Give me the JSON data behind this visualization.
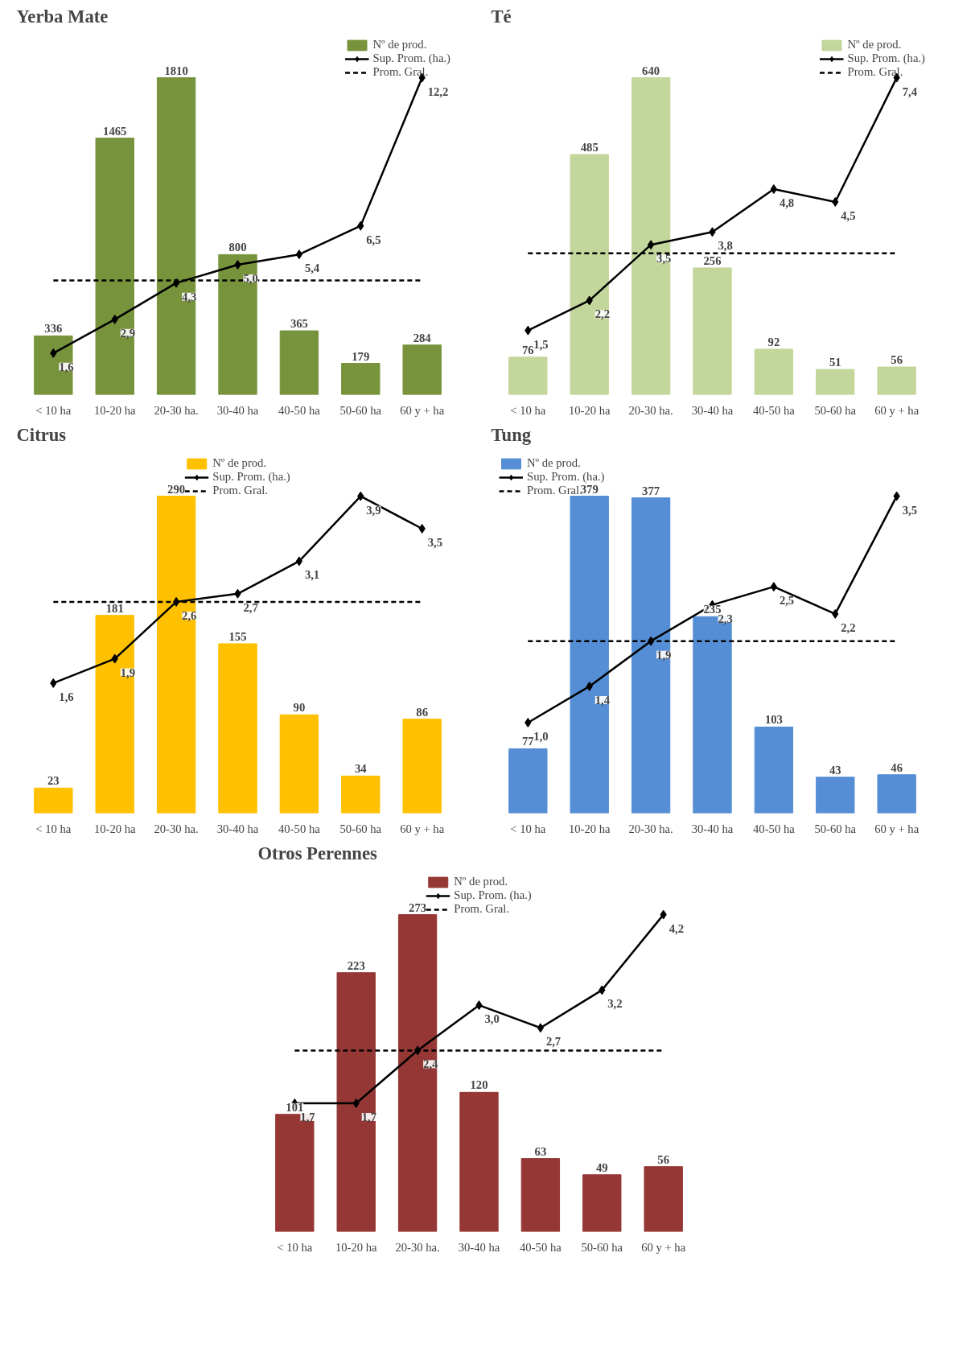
{
  "chart_data": [
    {
      "type": "bar",
      "title": "Yerba Mate",
      "categories": [
        "< 10 ha",
        "10-20 ha",
        "20-30 ha.",
        "30-40 ha",
        "40-50 ha",
        "50-60 ha",
        "60 y + ha"
      ],
      "tick_labels": "x",
      "legend": "top right",
      "marker": "diamond",
      "grid": false,
      "series": [
        {
          "name": "Nº de prod.",
          "color": "#77933c",
          "values": [
            336,
            1465,
            1810,
            800,
            365,
            179,
            284
          ],
          "value_labels": [
            "336",
            "1465",
            "1810",
            "800",
            "365",
            "179",
            "284"
          ]
        },
        {
          "name": "Sup. Prom. (ha.)",
          "type": "line",
          "axis": "y2",
          "color": "#000000",
          "values": [
            1.6,
            2.9,
            4.3,
            5.0,
            5.4,
            6.5,
            12.2
          ],
          "value_labels": [
            "1,6",
            "2,9",
            "4,3",
            "5,0",
            "5,4",
            "6,5",
            "12,2"
          ]
        }
      ],
      "ref_lines": [
        {
          "axis": "y2",
          "value": 4.4,
          "label": "Prom. Gral.",
          "color": "#000000",
          "line_style": "dashed"
        }
      ]
    },
    {
      "type": "bar",
      "title": "Té",
      "categories": [
        "< 10 ha",
        "10-20 ha",
        "20-30 ha.",
        "30-40 ha",
        "40-50 ha",
        "50-60 ha",
        "60 y + ha"
      ],
      "tick_labels": "x",
      "legend": "top right",
      "marker": "diamond",
      "grid": false,
      "series": [
        {
          "name": "Nº de prod.",
          "color": "#c3d69b",
          "values": [
            76,
            485,
            640,
            256,
            92,
            51,
            56
          ],
          "value_labels": [
            "76",
            "485",
            "640",
            "256",
            "92",
            "51",
            "56"
          ]
        },
        {
          "name": "Sup. Prom. (ha.)",
          "type": "line",
          "axis": "y2",
          "color": "#000000",
          "values": [
            1.5,
            2.2,
            3.5,
            3.8,
            4.8,
            4.5,
            7.4
          ],
          "value_labels": [
            "1,5",
            "2,2",
            "3,5",
            "3,8",
            "4,8",
            "4,5",
            "7,4"
          ]
        }
      ],
      "ref_lines": [
        {
          "axis": "y2",
          "value": 3.3,
          "label": "Prom. Gral.",
          "color": "#000000",
          "line_style": "dashed"
        }
      ]
    },
    {
      "type": "bar",
      "title": "Citrus",
      "categories": [
        "< 10 ha",
        "10-20 ha",
        "20-30 ha.",
        "30-40 ha",
        "40-50 ha",
        "50-60 ha",
        "60 y + ha"
      ],
      "tick_labels": "x",
      "legend": "top",
      "marker": "diamond",
      "grid": false,
      "series": [
        {
          "name": "Nº de prod.",
          "color": "#ffc000",
          "values": [
            23,
            181,
            290,
            155,
            90,
            34,
            86
          ],
          "value_labels": [
            "23",
            "181",
            "290",
            "155",
            "90",
            "34",
            "86"
          ]
        },
        {
          "name": "Sup. Prom. (ha.)",
          "type": "line",
          "axis": "y2",
          "color": "#000000",
          "values": [
            1.6,
            1.9,
            2.6,
            2.7,
            3.1,
            3.9,
            3.5
          ],
          "value_labels": [
            "1,6",
            "1,9",
            "2,6",
            "2,7",
            "3,1",
            "3,9",
            "3,5"
          ]
        }
      ],
      "ref_lines": [
        {
          "axis": "y2",
          "value": 2.6,
          "label": "Prom. Gral.",
          "color": "#000000",
          "line_style": "dashed"
        }
      ]
    },
    {
      "type": "bar",
      "title": "Tung",
      "categories": [
        "< 10 ha",
        "10-20 ha",
        "20-30 ha.",
        "30-40 ha",
        "40-50 ha",
        "50-60 ha",
        "60 y + ha"
      ],
      "tick_labels": "x",
      "legend": "top left",
      "marker": "diamond",
      "grid": false,
      "series": [
        {
          "name": "Nº de prod.",
          "color": "#558ed5",
          "values": [
            77,
            379,
            377,
            235,
            103,
            43,
            46
          ],
          "value_labels": [
            "77",
            "379",
            "377",
            "235",
            "103",
            "43",
            "46"
          ]
        },
        {
          "name": "Sup. Prom. (ha.)",
          "type": "line",
          "axis": "y2",
          "color": "#000000",
          "values": [
            1.0,
            1.4,
            1.9,
            2.3,
            2.5,
            2.2,
            3.5
          ],
          "value_labels": [
            "1,0",
            "1,4",
            "1,9",
            "2,3",
            "2,5",
            "2,2",
            "3,5"
          ]
        }
      ],
      "ref_lines": [
        {
          "axis": "y2",
          "value": 1.9,
          "label": "Prom. Gral.",
          "color": "#000000",
          "line_style": "dashed"
        }
      ]
    },
    {
      "type": "bar",
      "title": "Otros Perennes",
      "categories": [
        "< 10 ha",
        "10-20 ha",
        "20-30 ha.",
        "30-40 ha",
        "40-50 ha",
        "50-60 ha",
        "60 y + ha"
      ],
      "tick_labels": "x",
      "legend": "top",
      "marker": "diamond",
      "grid": false,
      "series": [
        {
          "name": "Nº de prod.",
          "color": "#953735",
          "values": [
            101,
            223,
            273,
            120,
            63,
            49,
            56
          ],
          "value_labels": [
            "101",
            "223",
            "273",
            "120",
            "63",
            "49",
            "56"
          ]
        },
        {
          "name": "Sup. Prom. (ha.)",
          "type": "line",
          "axis": "y2",
          "color": "#000000",
          "values": [
            1.7,
            1.7,
            2.4,
            3.0,
            2.7,
            3.2,
            4.2
          ],
          "value_labels": [
            "1,7",
            "1,7",
            "2,4",
            "3,0",
            "2,7",
            "3,2",
            "4,2"
          ]
        }
      ],
      "ref_lines": [
        {
          "axis": "y2",
          "value": 2.4,
          "label": "Prom. Gral.",
          "color": "#000000",
          "line_style": "dashed"
        }
      ]
    }
  ]
}
